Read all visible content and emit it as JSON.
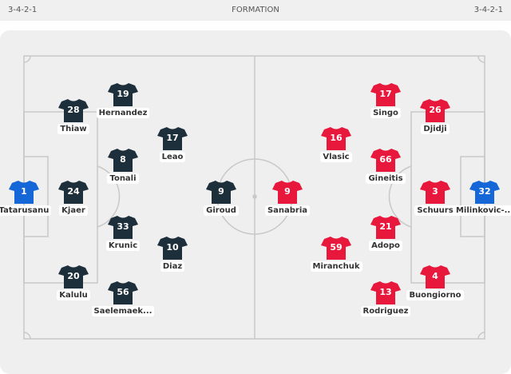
{
  "header": {
    "home_formation": "3-4-2-1",
    "title": "FORMATION",
    "away_formation": "3-4-2-1"
  },
  "colors": {
    "home_outfield": "#1d2f3a",
    "home_keeper": "#1566d6",
    "away_outfield": "#e8173c",
    "away_keeper": "#1566d6",
    "pitch": "#efefef",
    "lines": "#c8c8c8"
  },
  "home": [
    {
      "number": "1",
      "name": "Tatarusanu",
      "keeper": true
    },
    {
      "number": "28",
      "name": "Thiaw"
    },
    {
      "number": "24",
      "name": "Kjaer"
    },
    {
      "number": "20",
      "name": "Kalulu"
    },
    {
      "number": "19",
      "name": "Hernandez"
    },
    {
      "number": "8",
      "name": "Tonali"
    },
    {
      "number": "33",
      "name": "Krunic"
    },
    {
      "number": "56",
      "name": "Saelemaek..."
    },
    {
      "number": "17",
      "name": "Leao"
    },
    {
      "number": "10",
      "name": "Diaz"
    },
    {
      "number": "9",
      "name": "Giroud"
    }
  ],
  "away": [
    {
      "number": "32",
      "name": "Milinkovic-...",
      "keeper": true
    },
    {
      "number": "26",
      "name": "Djidji"
    },
    {
      "number": "3",
      "name": "Schuurs"
    },
    {
      "number": "4",
      "name": "Buongiorno"
    },
    {
      "number": "17",
      "name": "Singo"
    },
    {
      "number": "66",
      "name": "Gineitis"
    },
    {
      "number": "21",
      "name": "Adopo"
    },
    {
      "number": "13",
      "name": "Rodriguez"
    },
    {
      "number": "16",
      "name": "Vlasic"
    },
    {
      "number": "59",
      "name": "Miranchuk"
    },
    {
      "number": "9",
      "name": "Sanabria"
    }
  ]
}
